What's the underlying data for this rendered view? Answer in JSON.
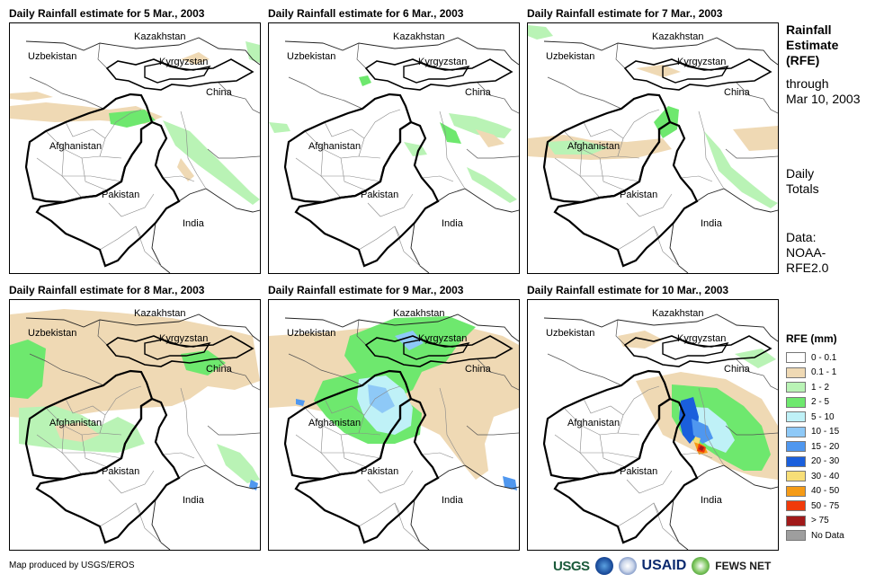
{
  "panels": [
    {
      "title": "Daily Rainfall estimate for 5 Mar., 2003"
    },
    {
      "title": "Daily Rainfall estimate for 6 Mar., 2003"
    },
    {
      "title": "Daily Rainfall estimate for 7 Mar., 2003"
    },
    {
      "title": "Daily Rainfall estimate for 8 Mar., 2003"
    },
    {
      "title": "Daily Rainfall estimate for 9 Mar., 2003"
    },
    {
      "title": "Daily Rainfall estimate for 10 Mar., 2003"
    }
  ],
  "map_labels": {
    "kazakhstan": "Kazakhstan",
    "uzbekistan": "Uzbekistan",
    "kyrgyzstan": "Kyrgyzstan",
    "china": "China",
    "afghanistan": "Afghanistan",
    "pakistan": "Pakistan",
    "india": "India"
  },
  "sidebar": {
    "title_lines": [
      "Rainfall",
      "Estimate",
      "(RFE)"
    ],
    "through_line": "through",
    "date_line": "Mar 10, 2003",
    "daily_lines": [
      "Daily",
      "Totals"
    ],
    "data_lines": [
      "Data:",
      "NOAA-",
      "RFE2.0"
    ]
  },
  "legend": {
    "title": "RFE (mm)",
    "items": [
      {
        "label": "0 - 0.1",
        "color": "#ffffff"
      },
      {
        "label": "0.1 - 1",
        "color": "#efd9b4"
      },
      {
        "label": "1 - 2",
        "color": "#b9f3b5"
      },
      {
        "label": "2 - 5",
        "color": "#6ee86e"
      },
      {
        "label": "5 - 10",
        "color": "#bff1f7"
      },
      {
        "label": "10 - 15",
        "color": "#8ec9f7"
      },
      {
        "label": "15 - 20",
        "color": "#4f97ef"
      },
      {
        "label": "20 - 30",
        "color": "#1a5fdc"
      },
      {
        "label": "30 - 40",
        "color": "#f7de77"
      },
      {
        "label": "40 - 50",
        "color": "#f59b16"
      },
      {
        "label": "50 - 75",
        "color": "#f03a0a"
      },
      {
        "label": "> 75",
        "color": "#a11a1a"
      },
      {
        "label": "No Data",
        "color": "#9e9e9e"
      }
    ]
  },
  "footer": {
    "credit": "Map produced by USGS/EROS",
    "logos": {
      "usgs": "USGS",
      "usaid": "USAID",
      "fews": "FEWS NET"
    }
  }
}
